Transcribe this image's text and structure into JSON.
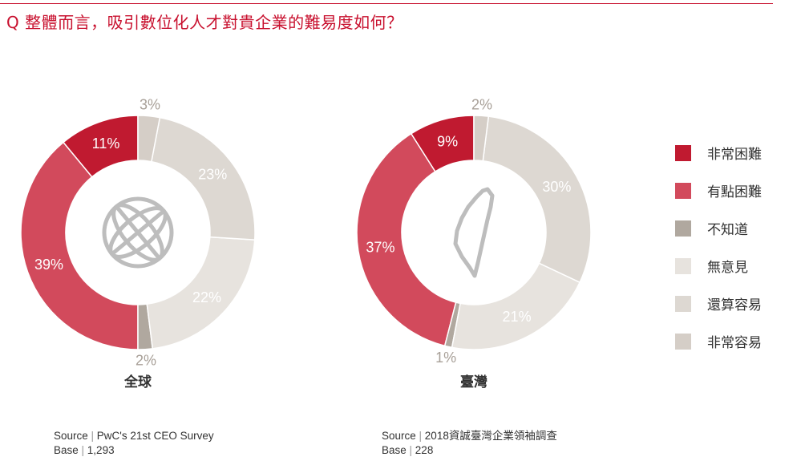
{
  "question": "Q 整體而言，吸引數位化人才對貴企業的難易度如何？",
  "chart_data": [
    {
      "type": "pie",
      "title": "全球",
      "categories": [
        "非常困難",
        "有點困難",
        "不知道",
        "無意見",
        "還算容易",
        "非常容易"
      ],
      "values": [
        11,
        39,
        2,
        22,
        23,
        3
      ],
      "labels": [
        "11%",
        "39%",
        "2%",
        "22%",
        "23%",
        "3%"
      ],
      "donut": true,
      "center_icon": "globe-icon",
      "source_label": "Source",
      "source": "PwC's 21st CEO Survey",
      "base_label": "Base",
      "base": "1,293"
    },
    {
      "type": "pie",
      "title": "臺灣",
      "categories": [
        "非常困難",
        "有點困難",
        "不知道",
        "無意見",
        "還算容易",
        "非常容易"
      ],
      "values": [
        9,
        37,
        1,
        21,
        30,
        2
      ],
      "labels": [
        "9%",
        "37%",
        "1%",
        "21%",
        "30%",
        "2%"
      ],
      "donut": true,
      "center_icon": "taiwan-map-icon",
      "source_label": "Source",
      "source": "2018資誠臺灣企業領袖調查",
      "base_label": "Base",
      "base": "228"
    }
  ],
  "legend": [
    {
      "label": "非常困難",
      "color": "#c01a30"
    },
    {
      "label": "有點困難",
      "color": "#d24a5c"
    },
    {
      "label": "不知道",
      "color": "#b0a89f"
    },
    {
      "label": "無意見",
      "color": "#e7e3de"
    },
    {
      "label": "還算容易",
      "color": "#ddd8d2"
    },
    {
      "label": "非常容易",
      "color": "#d5cec7"
    }
  ]
}
